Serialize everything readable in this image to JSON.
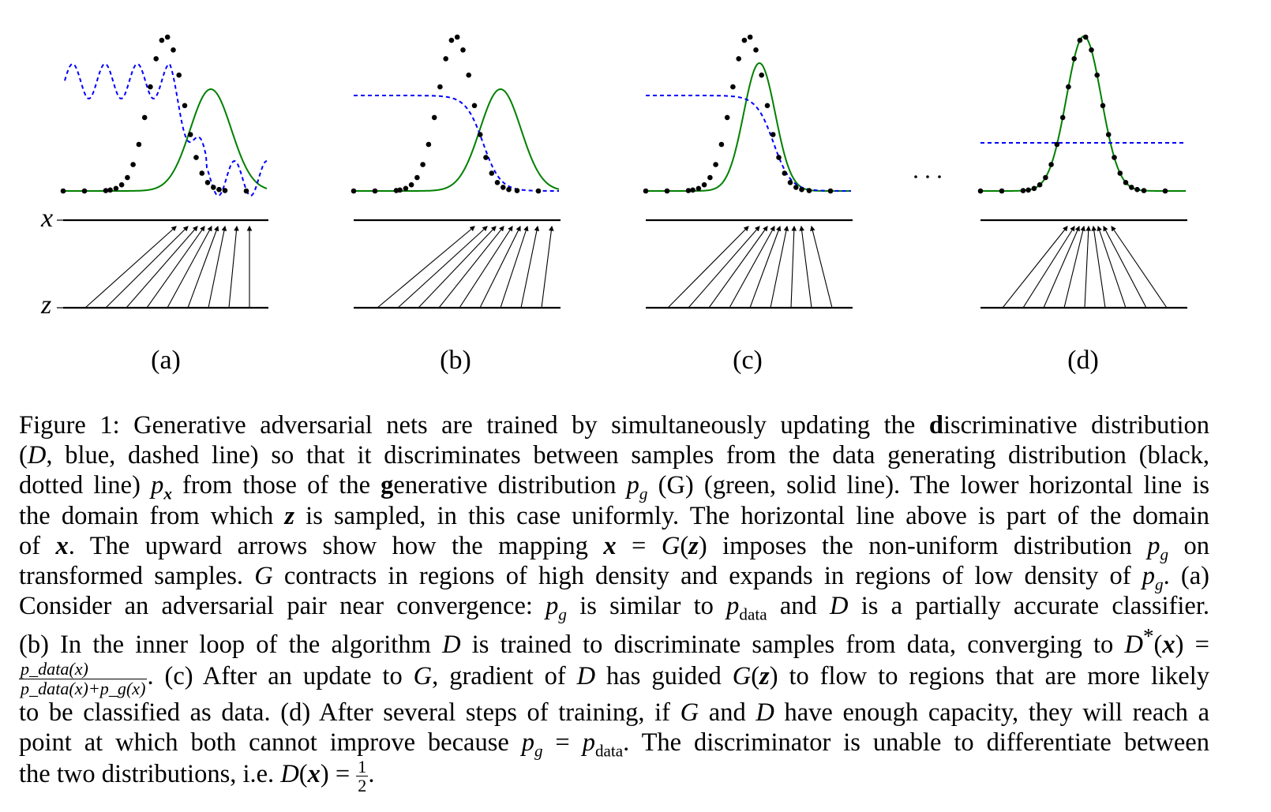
{
  "figure": {
    "axis_labels": {
      "x": "x",
      "z": "z"
    },
    "ellipsis": "· · ·",
    "panels": [
      {
        "id": "a",
        "label": "(a)"
      },
      {
        "id": "b",
        "label": "(b)"
      },
      {
        "id": "c",
        "label": "(c)"
      },
      {
        "id": "d",
        "label": "(d)"
      }
    ],
    "colors": {
      "data": "#000000",
      "generator": "#008000",
      "discriminator": "#0000ff",
      "axis": "#000000"
    }
  },
  "chart_data": {
    "type": "line",
    "title": "Figure 1: GAN training illustration",
    "legend": [
      {
        "name": "data distribution p_x",
        "style": "black dotted"
      },
      {
        "name": "generative distribution p_g (G)",
        "style": "green solid"
      },
      {
        "name": "discriminative distribution D",
        "style": "blue dashed"
      }
    ],
    "panels": [
      {
        "label": "(a)",
        "D": "oscillating, partially accurate",
        "p_g_shift": "right of data",
        "arrows": 9
      },
      {
        "label": "(b)",
        "D": "smooth sigmoid, D*(x)",
        "p_g_shift": "right of data",
        "arrows": 9
      },
      {
        "label": "(c)",
        "D": "smooth sigmoid",
        "p_g_shift": "closer to data",
        "arrows": 9
      },
      {
        "label": "(d)",
        "D": "flat at 1/2",
        "p_g_shift": "equal to data",
        "arrows": 11
      }
    ]
  },
  "caption": {
    "lines": [
      [
        "Figure 1:",
        " Generative adversarial nets are trained by simultaneously updating the ",
        "d",
        "iscriminative distribution"
      ],
      [
        "(",
        "D",
        ", blue, dashed line) so that it discriminates between samples from the data generating distribution (black,"
      ],
      [
        "dotted line) ",
        "p",
        "x",
        " from those of the ",
        "g",
        "enerative distribution ",
        "p",
        "g",
        " (G) (green, solid line). The lower horizontal line is"
      ],
      [
        "the domain from which ",
        "z",
        " is sampled, in this case uniformly. The horizontal line above is part of the domain"
      ],
      [
        "of ",
        "x",
        ".  The upward arrows show how the mapping ",
        "x",
        " = ",
        "G",
        "(",
        "z",
        ") imposes the non-uniform distribution ",
        "p",
        "g",
        " on"
      ],
      [
        "transformed samples. ",
        "G",
        " contracts in regions of high density and expands in regions of low density of ",
        "p",
        "g",
        ". (a)"
      ],
      [
        "Consider an adversarial pair near convergence: ",
        "p",
        "g",
        " is similar to ",
        "p",
        "data",
        " and ",
        "D",
        " is a partially accurate classifier."
      ],
      [
        "(b) In the inner loop of the algorithm ",
        "D",
        " is trained to discriminate samples from data, converging to ",
        "D",
        "*",
        "(",
        "x",
        ") ="
      ],
      [
        "p_data(x)",
        "p_data(x)+p_g(x)",
        ". (c) After an update to ",
        "G",
        ", gradient of ",
        "D",
        " has guided ",
        "G",
        "(",
        "z",
        ") to flow to regions that are more likely"
      ],
      [
        "to be classified as data. (d) After several steps of training, if ",
        "G",
        " and ",
        "D",
        " have enough capacity, they will reach a"
      ],
      [
        "point at which both cannot improve because ",
        "p",
        "g",
        " = ",
        "p",
        "data",
        ". The discriminator is unable to differentiate between"
      ],
      [
        "the two distributions, i.e. ",
        "D",
        "(",
        "x",
        ") = ",
        "1",
        "2",
        "."
      ]
    ]
  }
}
